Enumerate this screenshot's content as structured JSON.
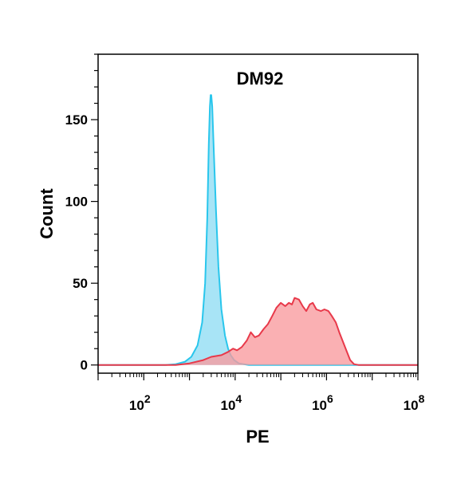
{
  "chart_data": {
    "type": "area",
    "title": "DM92",
    "xlabel": "PE",
    "ylabel": "Count",
    "x_scale": "log10",
    "xlim": [
      10,
      100000000
    ],
    "ylim": [
      -5,
      190
    ],
    "x_ticks": [
      {
        "value": 100,
        "base": "10",
        "exp": "2"
      },
      {
        "value": 10000,
        "base": "10",
        "exp": "4"
      },
      {
        "value": 1000000,
        "base": "10",
        "exp": "6"
      },
      {
        "value": 100000000,
        "base": "10",
        "exp": "8"
      }
    ],
    "y_ticks": [
      {
        "value": 0,
        "label": "0"
      },
      {
        "value": 50,
        "label": "50"
      },
      {
        "value": 100,
        "label": "100"
      },
      {
        "value": 150,
        "label": "150"
      }
    ],
    "grid": false,
    "legend": "none",
    "series": [
      {
        "color": "#29c6ec",
        "fill": "#8fdcf4",
        "points": [
          [
            10,
            0
          ],
          [
            50,
            0
          ],
          [
            300,
            0
          ],
          [
            500,
            0.5
          ],
          [
            800,
            2
          ],
          [
            1100,
            5
          ],
          [
            1500,
            12
          ],
          [
            1900,
            26
          ],
          [
            2200,
            50
          ],
          [
            2450,
            90
          ],
          [
            2650,
            135
          ],
          [
            2800,
            158
          ],
          [
            2900,
            165
          ],
          [
            3000,
            165
          ],
          [
            3150,
            158
          ],
          [
            3400,
            132
          ],
          [
            3800,
            95
          ],
          [
            4300,
            60
          ],
          [
            5000,
            34
          ],
          [
            6000,
            18
          ],
          [
            7000,
            10
          ],
          [
            8000,
            6
          ],
          [
            9500,
            3
          ],
          [
            12000,
            1
          ],
          [
            20000,
            0
          ],
          [
            100000000,
            0
          ]
        ]
      },
      {
        "color": "#e8394a",
        "fill": "#f89a9e",
        "points": [
          [
            10,
            0
          ],
          [
            500,
            0
          ],
          [
            1000,
            1
          ],
          [
            2000,
            3
          ],
          [
            3000,
            5
          ],
          [
            5000,
            6
          ],
          [
            7000,
            8
          ],
          [
            9000,
            10
          ],
          [
            11000,
            9
          ],
          [
            14000,
            11
          ],
          [
            18000,
            15
          ],
          [
            22000,
            20
          ],
          [
            27000,
            17
          ],
          [
            33000,
            18
          ],
          [
            42000,
            22
          ],
          [
            52000,
            25
          ],
          [
            65000,
            30
          ],
          [
            80000,
            35
          ],
          [
            100000,
            38
          ],
          [
            125000,
            36
          ],
          [
            150000,
            38
          ],
          [
            175000,
            37
          ],
          [
            200000,
            41
          ],
          [
            250000,
            40
          ],
          [
            300000,
            36
          ],
          [
            360000,
            33
          ],
          [
            430000,
            37
          ],
          [
            500000,
            38
          ],
          [
            600000,
            34
          ],
          [
            750000,
            33
          ],
          [
            900000,
            34
          ],
          [
            1100000,
            33
          ],
          [
            1300000,
            30
          ],
          [
            1600000,
            26
          ],
          [
            1900000,
            20
          ],
          [
            2300000,
            14
          ],
          [
            2800000,
            8
          ],
          [
            3300000,
            3
          ],
          [
            4000000,
            0.5
          ],
          [
            5000000,
            0
          ],
          [
            100000000,
            0
          ]
        ]
      }
    ]
  }
}
